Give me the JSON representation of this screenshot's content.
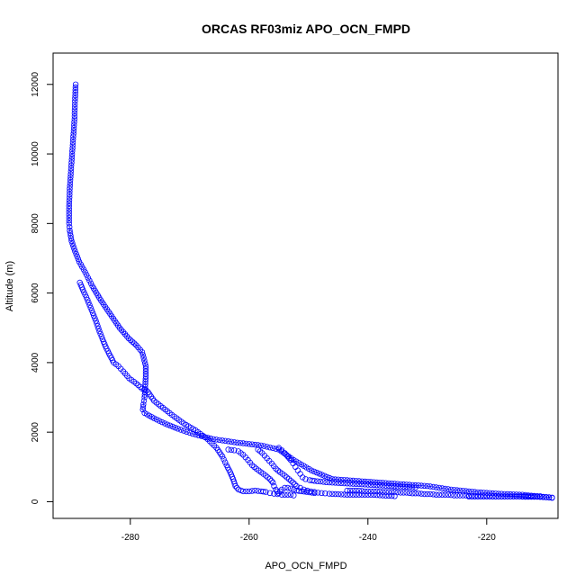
{
  "chart_data": {
    "type": "scatter",
    "title": "ORCAS RF03miz APO_OCN_FMPD",
    "xlabel": "APO_OCN_FMPD",
    "ylabel": "Altitude (m)",
    "xlim": [
      -293.0,
      -208.0
    ],
    "ylim": [
      -480,
      12900
    ],
    "xticks": [
      -280,
      -260,
      -240,
      -220
    ],
    "yticks": [
      0,
      2000,
      4000,
      6000,
      8000,
      10000,
      12000
    ],
    "marker": "open-circle",
    "color": "#0000ff",
    "grid": false,
    "legend": "none",
    "series": [
      {
        "x": [
          -289.2,
          -289.3,
          -289.4,
          -289.6,
          -289.8,
          -290.0,
          -290.2,
          -290.3,
          -290.3,
          -290.2,
          -289.9,
          -289.3,
          -288.6,
          -287.6,
          -286.4,
          -285.0,
          -283.4,
          -281.8,
          -280.3,
          -279.0,
          -278.0,
          -277.4,
          -277.4,
          -277.5,
          -277.6,
          -277.8,
          -277.9,
          -277.6,
          -276.0,
          -274.2,
          -272.0,
          -269.5,
          -266.0,
          -262.0,
          -258.0,
          -255.0,
          -252.5,
          -249.5,
          -246.0,
          -242.0,
          -238.0,
          -234.0,
          -230.0,
          -226.0,
          -222.0,
          -218.0,
          -214.0,
          -211.0,
          -209.0
        ],
        "y": [
          12000,
          11600,
          11000,
          10500,
          10000,
          9500,
          9000,
          8500,
          8000,
          7800,
          7500,
          7200,
          6900,
          6600,
          6200,
          5800,
          5400,
          5000,
          4700,
          4500,
          4300,
          3900,
          3600,
          3300,
          3000,
          2800,
          2650,
          2550,
          2400,
          2250,
          2100,
          1950,
          1800,
          1700,
          1620,
          1500,
          1200,
          900,
          650,
          600,
          550,
          500,
          450,
          350,
          280,
          230,
          200,
          150,
          120
        ],
        "connect": true
      },
      {
        "x": [
          -288.5,
          -288.0,
          -287.2,
          -286.5,
          -285.8,
          -285.2,
          -284.5,
          -284.0,
          -283.4,
          -282.8,
          -282.0,
          -281.2,
          -280.2,
          -279.0,
          -278.0,
          -277.3,
          -277.0,
          -276.0,
          -274.5,
          -273.0,
          -271.0,
          -269.0,
          -267.0,
          -265.5,
          -264.5,
          -263.8,
          -263.2,
          -262.7,
          -262.3,
          -261.8,
          -261.0,
          -260.0,
          -259.0,
          -258.0,
          -257.2,
          -256.5,
          -255.8,
          -255.2,
          -254.5,
          -254.0,
          -253.5,
          -253.0,
          -252.5
        ],
        "y": [
          6300,
          6100,
          5800,
          5500,
          5200,
          4900,
          4600,
          4400,
          4200,
          4000,
          3900,
          3750,
          3550,
          3400,
          3250,
          3200,
          3150,
          2900,
          2700,
          2500,
          2250,
          2050,
          1800,
          1550,
          1300,
          1050,
          850,
          650,
          450,
          350,
          300,
          300,
          320,
          300,
          280,
          250,
          230,
          220,
          200,
          200,
          200,
          200,
          180
        ],
        "connect": false
      },
      {
        "x": [
          -263.5,
          -262.5,
          -261.8,
          -261.0,
          -260.2,
          -259.5,
          -258.8,
          -258.0,
          -257.2,
          -256.5,
          -256.0,
          -255.8,
          -255.5,
          -255.3,
          -255.0,
          -254.8,
          -254.5,
          -254.0,
          -253.5,
          -253.0,
          -252.5,
          -252.0,
          -251.2,
          -250.3,
          -249.0
        ],
        "y": [
          1500,
          1480,
          1450,
          1350,
          1200,
          1050,
          950,
          850,
          750,
          650,
          550,
          450,
          350,
          300,
          250,
          300,
          350,
          400,
          400,
          380,
          350,
          320,
          300,
          280,
          250
        ],
        "connect": false
      },
      {
        "x": [
          -258.5,
          -257.8,
          -257.0,
          -256.2,
          -255.5,
          -254.8,
          -254.0,
          -253.3,
          -252.6,
          -252.0,
          -251.4,
          -250.8,
          -250.2,
          -249.6,
          -249.0,
          -248.4,
          -247.8,
          -247.2,
          -246.5,
          -245.5,
          -244.5,
          -243.5,
          -242.5,
          -241.5,
          -240.5,
          -239.5,
          -238.5,
          -237.5,
          -236.5,
          -235.5
        ],
        "y": [
          1500,
          1400,
          1250,
          1100,
          950,
          850,
          750,
          650,
          550,
          450,
          400,
          350,
          320,
          300,
          280,
          260,
          250,
          240,
          230,
          220,
          210,
          200,
          200,
          200,
          200,
          200,
          190,
          180,
          170,
          160
        ],
        "connect": false
      },
      {
        "x": [
          -255.0,
          -254.5,
          -254.0,
          -253.5,
          -253.0,
          -252.6,
          -252.2,
          -251.8,
          -251.4,
          -251.0,
          -250.5,
          -249.8,
          -249.0,
          -248.0,
          -247.0,
          -246.0,
          -245.0,
          -244.0,
          -243.0,
          -242.0,
          -241.0,
          -240.0,
          -239.0,
          -238.0,
          -237.0,
          -236.0,
          -235.0,
          -234.0,
          -233.0,
          -232.0
        ],
        "y": [
          1550,
          1480,
          1400,
          1300,
          1200,
          1100,
          1000,
          900,
          800,
          700,
          650,
          620,
          600,
          580,
          560,
          550,
          540,
          530,
          520,
          510,
          500,
          490,
          480,
          470,
          460,
          450,
          440,
          430,
          420,
          410
        ],
        "connect": false
      },
      {
        "x": [
          -243.5,
          -242.5,
          -241.5,
          -240.5,
          -239.5,
          -238.5,
          -237.5,
          -236.5,
          -235.5,
          -234.5,
          -233.5,
          -232.5,
          -231.5,
          -230.5,
          -229.5,
          -228.5,
          -227.5,
          -226.5,
          -225.5,
          -224.5,
          -223.5,
          -222.5,
          -221.5,
          -220.5,
          -219.5,
          -218.5,
          -217.5,
          -216.5,
          -215.5,
          -214.5,
          -213.5,
          -212.5,
          -211.5,
          -210.5,
          -209.5,
          -209.0
        ],
        "y": [
          320,
          320,
          320,
          300,
          300,
          300,
          280,
          280,
          280,
          260,
          260,
          240,
          240,
          220,
          220,
          200,
          200,
          200,
          180,
          180,
          180,
          160,
          160,
          160,
          160,
          150,
          150,
          150,
          150,
          150,
          140,
          140,
          140,
          130,
          120,
          110
        ],
        "connect": false
      },
      {
        "x": [
          -223.0,
          -222.5,
          -222.0,
          -221.5,
          -221.0,
          -220.5,
          -220.0,
          -219.5,
          -219.0,
          -212.5,
          -212.0,
          -211.5,
          -211.0
        ],
        "y": [
          150,
          150,
          150,
          150,
          150,
          150,
          150,
          150,
          150,
          160,
          160,
          160,
          160
        ],
        "connect": false
      }
    ]
  }
}
